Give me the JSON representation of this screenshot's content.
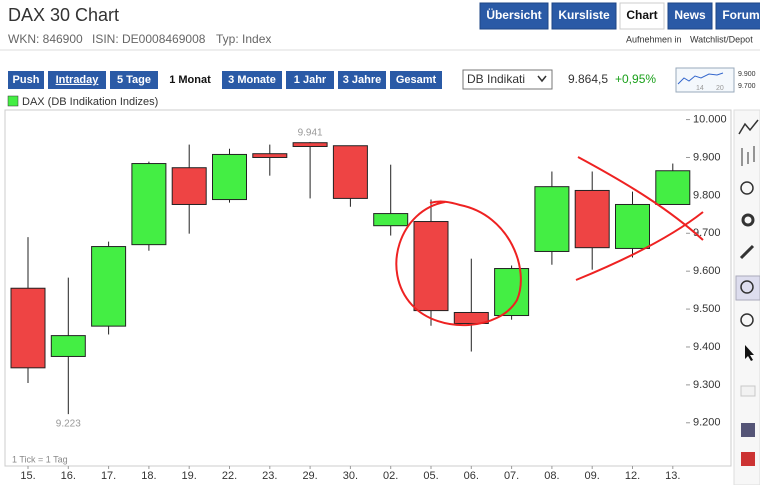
{
  "header": {
    "title": "DAX 30 Chart",
    "wkn": "WKN: 846900",
    "isin": "ISIN: DE0008469008",
    "typ": "Typ: Index",
    "watch_prefix": "Aufnehmen in",
    "watch_link": "Watchlist/Depot",
    "tabs": [
      "Übersicht",
      "Kursliste",
      "Chart",
      "News",
      "Forum"
    ]
  },
  "toolbar": {
    "periods": [
      "Push",
      "Intraday",
      "5 Tage",
      "1 Monat",
      "3 Monate",
      "1 Jahr",
      "3 Jahre",
      "Gesamt"
    ],
    "source": "DB Indikati",
    "price": "9.864,5",
    "change": "+0,95%",
    "mini_labels": [
      "9.900",
      "9.700"
    ],
    "mini_x": [
      "14",
      "20"
    ]
  },
  "chart_data": {
    "type": "candlestick",
    "legend": "DAX (DB Indikation Indizes)",
    "note": "1 Tick = 1 Tag",
    "categories": [
      "15.",
      "16.",
      "17.",
      "18.",
      "19.",
      "22.",
      "23.",
      "29.",
      "30.",
      "02.",
      "05.",
      "06.",
      "07.",
      "08.",
      "09.",
      "12.",
      "13."
    ],
    "open": [
      9555,
      9375,
      9455,
      9670,
      9873,
      9789,
      9910,
      9939,
      9931,
      9720,
      9731,
      9491,
      9483,
      9652,
      9813,
      9660,
      9776
    ],
    "high": [
      9690,
      9583,
      9678,
      9889,
      9934,
      9923,
      9934,
      9941,
      9931,
      9881,
      9789,
      9633,
      9615,
      9863,
      9863,
      9810,
      9884
    ],
    "low": [
      9305,
      9223,
      9433,
      9654,
      9699,
      9781,
      9852,
      9792,
      9770,
      9694,
      9456,
      9388,
      9472,
      9617,
      9604,
      9636,
      9776
    ],
    "close": [
      9345,
      9430,
      9665,
      9884,
      9776,
      9908,
      9900,
      9929,
      9792,
      9752,
      9496,
      9462,
      9607,
      9823,
      9662,
      9776,
      9865
    ],
    "up_color": "#44ee44",
    "down_color": "#ee4444",
    "ylim": [
      9115,
      10020
    ],
    "yticks": [
      {
        "value": 10000,
        "label": "10.000"
      },
      {
        "value": 9900,
        "label": "9.900"
      },
      {
        "value": 9800,
        "label": "9.800"
      },
      {
        "value": 9700,
        "label": "9.700"
      },
      {
        "value": 9600,
        "label": "9.600"
      },
      {
        "value": 9500,
        "label": "9.500"
      },
      {
        "value": 9400,
        "label": "9.400"
      },
      {
        "value": 9300,
        "label": "9.300"
      },
      {
        "value": 9200,
        "label": "9.200"
      }
    ],
    "annotations": [
      {
        "text": "9.941",
        "x": "29.",
        "y": 9941
      },
      {
        "text": "9.223",
        "x": "16.",
        "y": 9223
      }
    ]
  }
}
